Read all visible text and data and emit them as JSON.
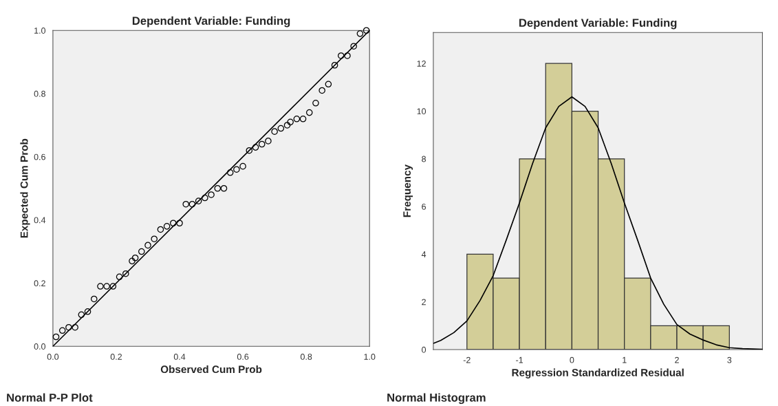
{
  "chart_data": [
    {
      "type": "scatter",
      "title": "Dependent Variable: Funding",
      "xlabel": "Observed Cum Prob",
      "ylabel": "Expected Cum Prob",
      "annotations": [
        "Normal P-P Plot"
      ],
      "xlim": [
        0,
        1
      ],
      "ylim": [
        0,
        1
      ],
      "xticks": [
        {
          "value": 0,
          "label": "0.0"
        },
        {
          "value": 0.2,
          "label": "0.2"
        },
        {
          "value": 0.4,
          "label": "0.4"
        },
        {
          "value": 0.6,
          "label": "0.6"
        },
        {
          "value": 0.8,
          "label": "0.8"
        },
        {
          "value": 1,
          "label": "1.0"
        }
      ],
      "yticks": [
        {
          "value": 0,
          "label": "0.0"
        },
        {
          "value": 0.2,
          "label": "0.2"
        },
        {
          "value": 0.4,
          "label": "0.4"
        },
        {
          "value": 0.6,
          "label": "0.6"
        },
        {
          "value": 0.8,
          "label": "0.8"
        },
        {
          "value": 1,
          "label": "1.0"
        }
      ],
      "series": [
        {
          "type": "scatter",
          "marker": "circle",
          "color": "#000000",
          "x": [
            0.01,
            0.03,
            0.05,
            0.07,
            0.09,
            0.11,
            0.13,
            0.15,
            0.17,
            0.19,
            0.21,
            0.23,
            0.25,
            0.26,
            0.28,
            0.3,
            0.32,
            0.34,
            0.36,
            0.38,
            0.4,
            0.42,
            0.44,
            0.46,
            0.48,
            0.5,
            0.52,
            0.54,
            0.56,
            0.58,
            0.6,
            0.62,
            0.64,
            0.66,
            0.68,
            0.7,
            0.72,
            0.74,
            0.75,
            0.77,
            0.79,
            0.81,
            0.83,
            0.85,
            0.87,
            0.89,
            0.91,
            0.93,
            0.95,
            0.97,
            0.99
          ],
          "values": [
            0.03,
            0.05,
            0.06,
            0.06,
            0.1,
            0.11,
            0.15,
            0.19,
            0.19,
            0.19,
            0.22,
            0.23,
            0.27,
            0.28,
            0.3,
            0.32,
            0.34,
            0.37,
            0.38,
            0.39,
            0.39,
            0.45,
            0.45,
            0.46,
            0.47,
            0.48,
            0.5,
            0.5,
            0.55,
            0.56,
            0.57,
            0.62,
            0.63,
            0.64,
            0.65,
            0.68,
            0.69,
            0.7,
            0.71,
            0.72,
            0.72,
            0.74,
            0.77,
            0.81,
            0.83,
            0.89,
            0.92,
            0.92,
            0.95,
            0.99,
            1.0
          ]
        },
        {
          "type": "line",
          "color": "#000000",
          "x": [
            0,
            1
          ],
          "values": [
            0,
            1
          ]
        }
      ]
    },
    {
      "type": "histogram",
      "title": "Dependent Variable: Funding",
      "xlabel": "Regression Standardized Residual",
      "ylabel": "Frequency",
      "annotations": [
        "Normal Histogram"
      ],
      "bins": [
        -2,
        -1.5,
        -1,
        -0.5,
        0,
        0.5,
        1,
        1.5,
        2,
        2.5,
        3
      ],
      "values": [
        4,
        3,
        8,
        12,
        10,
        8,
        3,
        1,
        1,
        1
      ],
      "color": "#d3ce98",
      "xlim": [
        -2.64,
        3.63
      ],
      "ylim": [
        0,
        13.3
      ],
      "xticks": [
        -2,
        -1,
        0,
        1,
        2,
        3
      ],
      "yticks": [
        0,
        2,
        4,
        6,
        8,
        10,
        12
      ],
      "series": [
        {
          "type": "line",
          "color": "#000000",
          "x": [
            -2.64,
            -2.5,
            -2.25,
            -2,
            -1.75,
            -1.5,
            -1.25,
            -1,
            -0.75,
            -0.5,
            -0.25,
            0,
            0.25,
            0.5,
            0.75,
            1,
            1.25,
            1.5,
            1.75,
            2,
            2.25,
            2.5,
            2.75,
            3,
            3.25,
            3.63
          ],
          "values": [
            0.26,
            0.38,
            0.71,
            1.2,
            2.06,
            3.1,
            4.6,
            6.15,
            7.8,
            9.3,
            10.2,
            10.6,
            10.2,
            9.3,
            7.8,
            6.15,
            4.6,
            3.0,
            1.9,
            1.05,
            0.65,
            0.4,
            0.2,
            0.08,
            0.04,
            0.01
          ]
        }
      ]
    }
  ]
}
